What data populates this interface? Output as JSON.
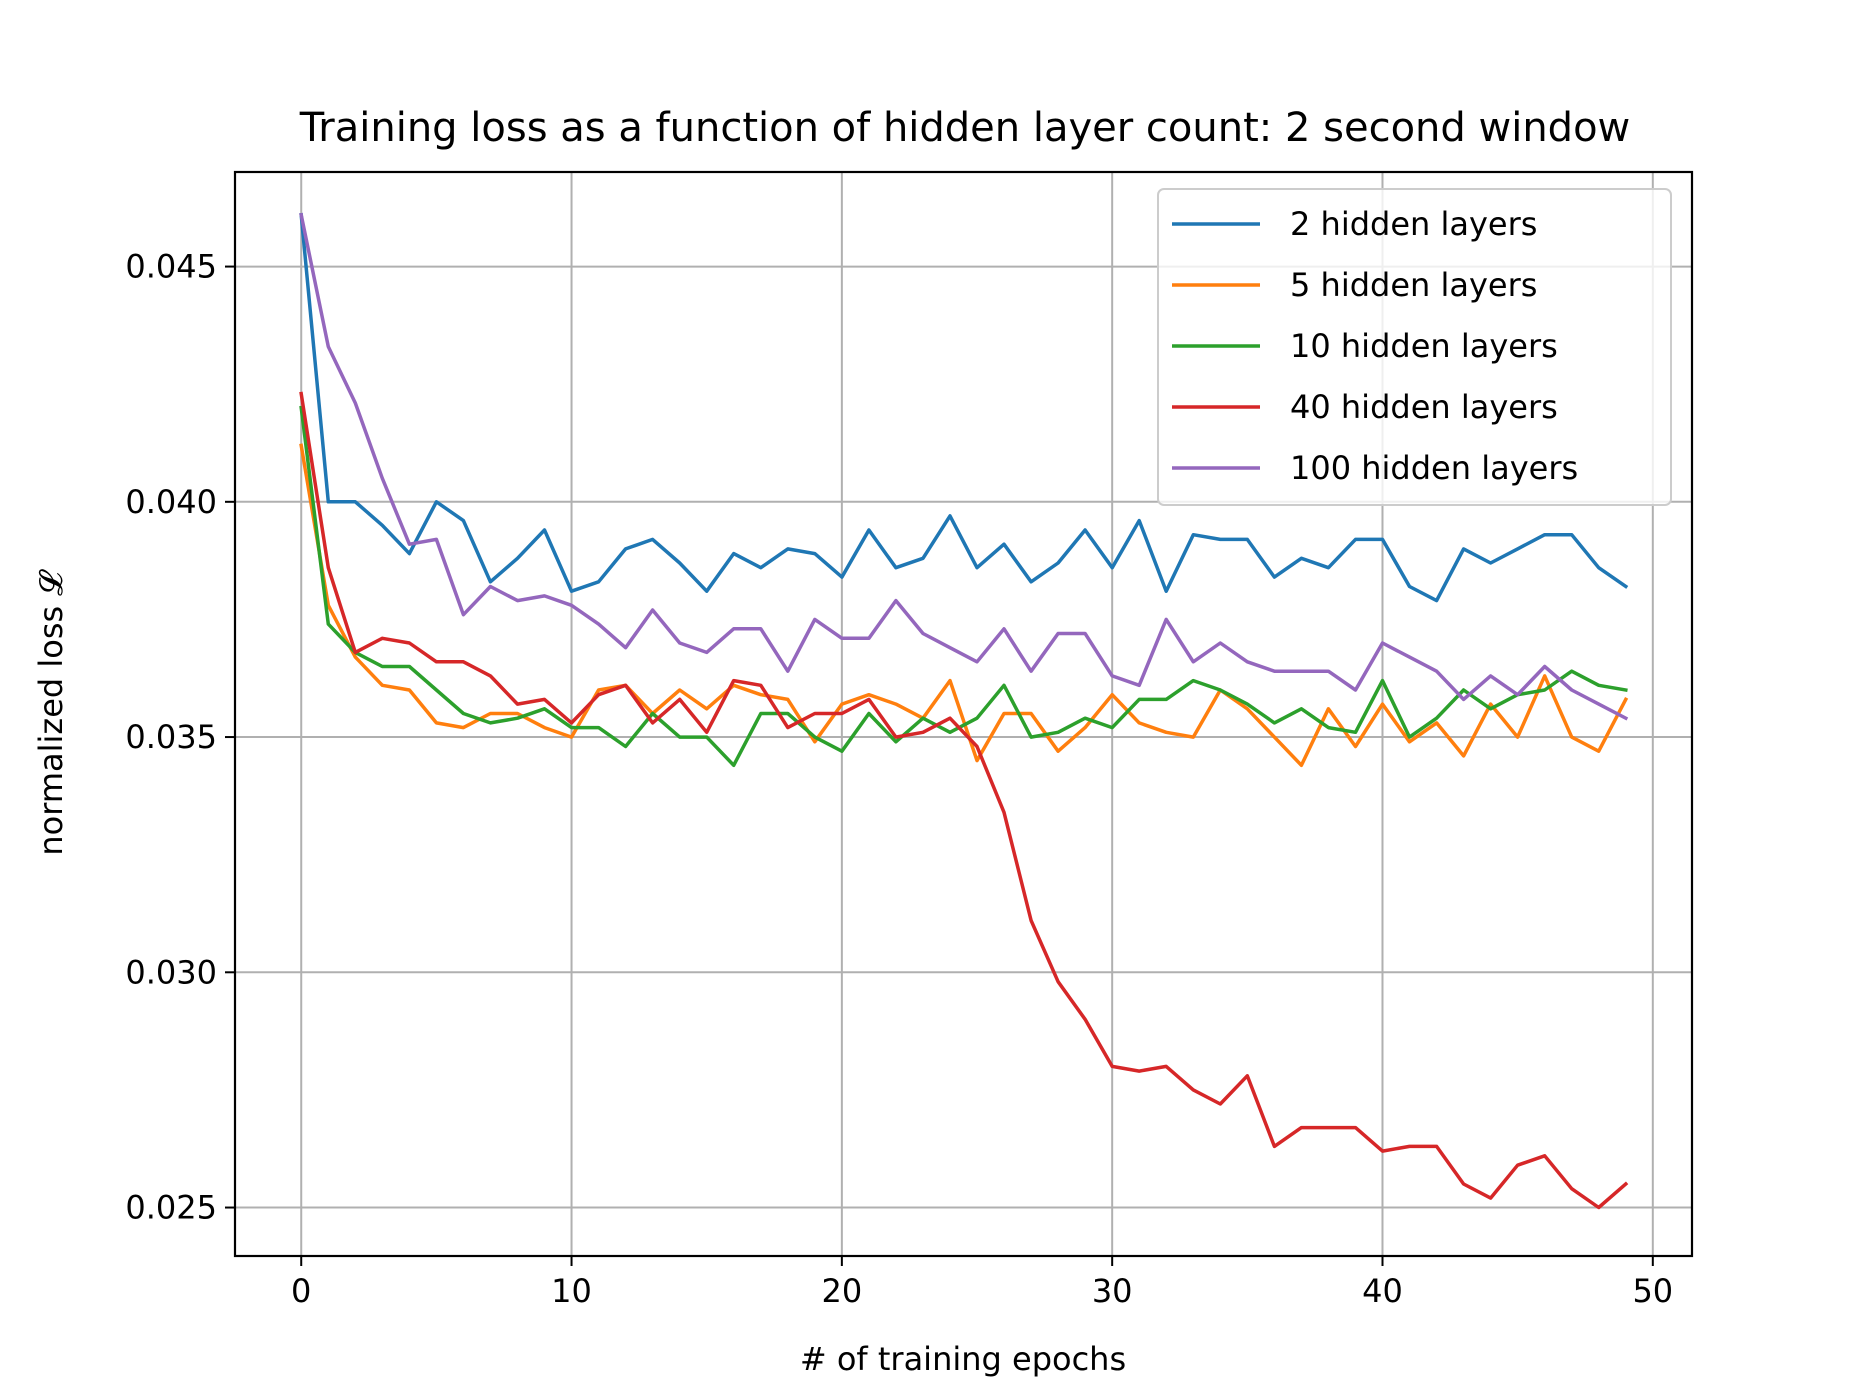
{
  "chart_data": {
    "type": "line",
    "title": "Training loss as a function of hidden layer count: 2 second window",
    "xlabel": "# of training epochs",
    "ylabel": "normalized loss 𝓛",
    "xlim": [
      -2.45,
      51.45
    ],
    "ylim": [
      0.02397,
      0.04701
    ],
    "xticks": [
      0,
      10,
      20,
      30,
      40,
      50
    ],
    "xtick_labels": [
      "0",
      "10",
      "20",
      "30",
      "40",
      "50"
    ],
    "yticks": [
      0.025,
      0.03,
      0.035,
      0.04,
      0.045
    ],
    "ytick_labels": [
      "0.025",
      "0.030",
      "0.035",
      "0.040",
      "0.045"
    ],
    "grid": true,
    "legend_position": "top-right",
    "x": [
      0,
      1,
      2,
      3,
      4,
      5,
      6,
      7,
      8,
      9,
      10,
      11,
      12,
      13,
      14,
      15,
      16,
      17,
      18,
      19,
      20,
      21,
      22,
      23,
      24,
      25,
      26,
      27,
      28,
      29,
      30,
      31,
      32,
      33,
      34,
      35,
      36,
      37,
      38,
      39,
      40,
      41,
      42,
      43,
      44,
      45,
      46,
      47,
      48,
      49
    ],
    "series": [
      {
        "name": "2 hidden layers",
        "color": "#1f77b4",
        "values": [
          0.0461,
          0.04,
          0.04,
          0.0395,
          0.0389,
          0.04,
          0.0396,
          0.0383,
          0.0388,
          0.0394,
          0.0381,
          0.0383,
          0.039,
          0.0392,
          0.0387,
          0.0381,
          0.0389,
          0.0386,
          0.039,
          0.0389,
          0.0384,
          0.0394,
          0.0386,
          0.0388,
          0.0397,
          0.0386,
          0.0391,
          0.0383,
          0.0387,
          0.0394,
          0.0386,
          0.0396,
          0.0381,
          0.0393,
          0.0392,
          0.0392,
          0.0384,
          0.0388,
          0.0386,
          0.0392,
          0.0392,
          0.0382,
          0.0379,
          0.039,
          0.0387,
          0.039,
          0.0393,
          0.0393,
          0.0386,
          0.0382
        ]
      },
      {
        "name": "5 hidden layers",
        "color": "#ff7f0e",
        "values": [
          0.0412,
          0.0378,
          0.0367,
          0.0361,
          0.036,
          0.0353,
          0.0352,
          0.0355,
          0.0355,
          0.0352,
          0.035,
          0.036,
          0.0361,
          0.0355,
          0.036,
          0.0356,
          0.0361,
          0.0359,
          0.0358,
          0.0349,
          0.0357,
          0.0359,
          0.0357,
          0.0354,
          0.0362,
          0.0345,
          0.0355,
          0.0355,
          0.0347,
          0.0352,
          0.0359,
          0.0353,
          0.0351,
          0.035,
          0.036,
          0.0356,
          0.035,
          0.0344,
          0.0356,
          0.0348,
          0.0357,
          0.0349,
          0.0353,
          0.0346,
          0.0357,
          0.035,
          0.0363,
          0.035,
          0.0347,
          0.0358
        ]
      },
      {
        "name": "10 hidden layers",
        "color": "#2ca02c",
        "values": [
          0.042,
          0.0374,
          0.0368,
          0.0365,
          0.0365,
          0.036,
          0.0355,
          0.0353,
          0.0354,
          0.0356,
          0.0352,
          0.0352,
          0.0348,
          0.0355,
          0.035,
          0.035,
          0.0344,
          0.0355,
          0.0355,
          0.035,
          0.0347,
          0.0355,
          0.0349,
          0.0354,
          0.0351,
          0.0354,
          0.0361,
          0.035,
          0.0351,
          0.0354,
          0.0352,
          0.0358,
          0.0358,
          0.0362,
          0.036,
          0.0357,
          0.0353,
          0.0356,
          0.0352,
          0.0351,
          0.0362,
          0.035,
          0.0354,
          0.036,
          0.0356,
          0.0359,
          0.036,
          0.0364,
          0.0361,
          0.036
        ]
      },
      {
        "name": "40 hidden layers",
        "color": "#d62728",
        "values": [
          0.0423,
          0.0386,
          0.0368,
          0.0371,
          0.037,
          0.0366,
          0.0366,
          0.0363,
          0.0357,
          0.0358,
          0.0353,
          0.0359,
          0.0361,
          0.0353,
          0.0358,
          0.0351,
          0.0362,
          0.0361,
          0.0352,
          0.0355,
          0.0355,
          0.0358,
          0.035,
          0.0351,
          0.0354,
          0.0348,
          0.0334,
          0.0311,
          0.0298,
          0.029,
          0.028,
          0.0279,
          0.028,
          0.0275,
          0.0272,
          0.0278,
          0.0263,
          0.0267,
          0.0267,
          0.0267,
          0.0262,
          0.0263,
          0.0263,
          0.0255,
          0.0252,
          0.0259,
          0.0261,
          0.0254,
          0.025,
          0.0255
        ]
      },
      {
        "name": "100 hidden layers",
        "color": "#9467bd",
        "values": [
          0.0461,
          0.0433,
          0.0421,
          0.0405,
          0.0391,
          0.0392,
          0.0376,
          0.0382,
          0.0379,
          0.038,
          0.0378,
          0.0374,
          0.0369,
          0.0377,
          0.037,
          0.0368,
          0.0373,
          0.0373,
          0.0364,
          0.0375,
          0.0371,
          0.0371,
          0.0379,
          0.0372,
          0.0369,
          0.0366,
          0.0373,
          0.0364,
          0.0372,
          0.0372,
          0.0363,
          0.0361,
          0.0375,
          0.0366,
          0.037,
          0.0366,
          0.0364,
          0.0364,
          0.0364,
          0.036,
          0.037,
          0.0367,
          0.0364,
          0.0358,
          0.0363,
          0.0359,
          0.0365,
          0.036,
          0.0357,
          0.0354
        ]
      }
    ]
  }
}
